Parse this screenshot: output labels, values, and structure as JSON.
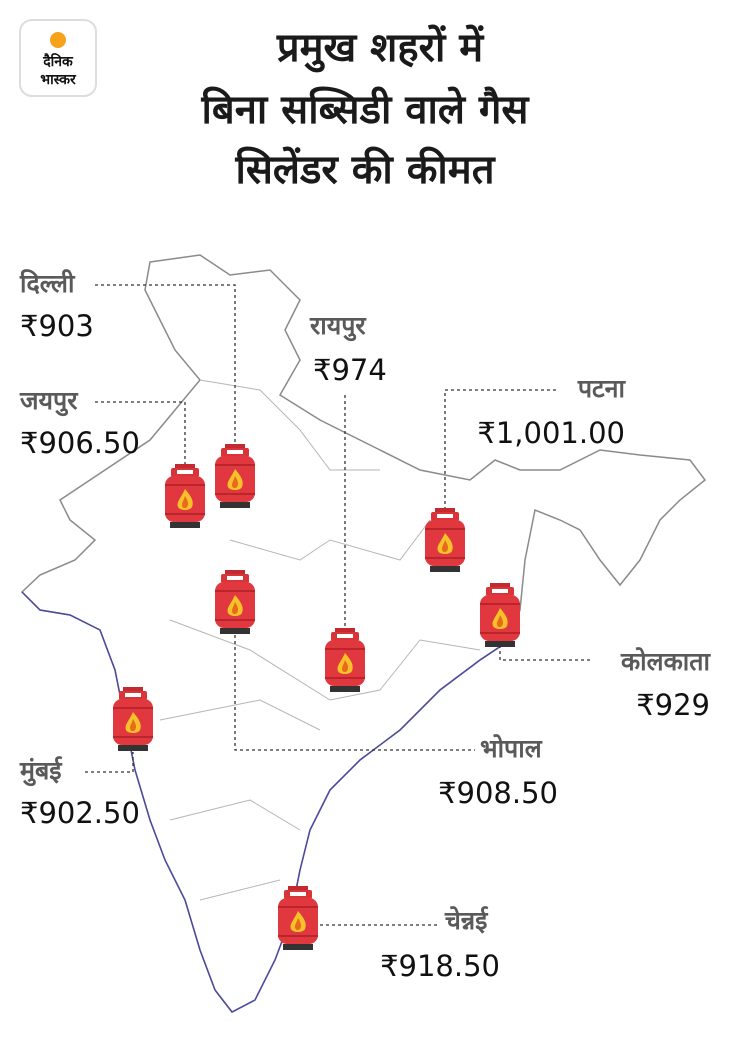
{
  "logo": {
    "line1": "दैनिक",
    "line2": "भास्कर"
  },
  "title": {
    "lines": [
      "प्रमुख शहरों में",
      "बिना सब्सिडी वाले गैस",
      "सिलेंडर की कीमत"
    ]
  },
  "cities": [
    {
      "name": "दिल्ली",
      "price": "₹903"
    },
    {
      "name": "जयपुर",
      "price": "₹906.50"
    },
    {
      "name": "रायपुर",
      "price": "₹974"
    },
    {
      "name": "पटना",
      "price": "₹1,001.00"
    },
    {
      "name": "कोलकाता",
      "price": "₹929"
    },
    {
      "name": "भोपाल",
      "price": "₹908.50"
    },
    {
      "name": "मुंबई",
      "price": "₹902.50"
    },
    {
      "name": "चेन्नई",
      "price": "₹918.50"
    }
  ]
}
